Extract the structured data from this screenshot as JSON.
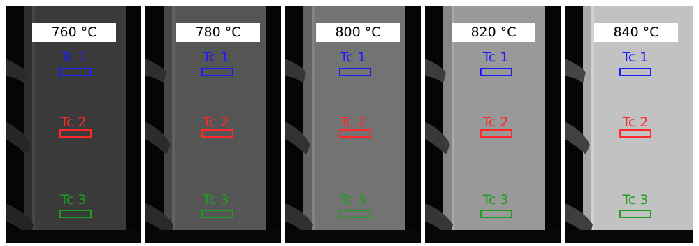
{
  "colors": {
    "tc1": "#1a1aff",
    "tc2": "#ff2a2a",
    "tc3": "#1e9e1e"
  },
  "panels": [
    {
      "temperature": "760 °C",
      "brightness": "#3a3a3a",
      "labels": [
        "Tc 1",
        "Tc 2",
        "Tc 3"
      ]
    },
    {
      "temperature": "780 °C",
      "brightness": "#555555",
      "labels": [
        "Tc 1",
        "Tc 2",
        "Tc 3"
      ]
    },
    {
      "temperature": "800 °C",
      "brightness": "#737373",
      "labels": [
        "Tc 1",
        "Tc 2",
        "Tc 3"
      ]
    },
    {
      "temperature": "820 °C",
      "brightness": "#999999",
      "labels": [
        "Tc 1",
        "Tc 2",
        "Tc 3"
      ]
    },
    {
      "temperature": "840 °C",
      "brightness": "#c2c2c2",
      "labels": [
        "Tc 1",
        "Tc 2",
        "Tc 3"
      ]
    }
  ]
}
